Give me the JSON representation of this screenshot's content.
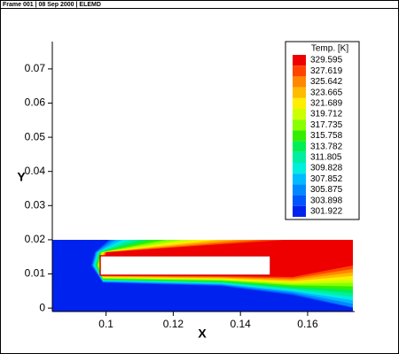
{
  "frame_header": "Frame 001 | 08 Sep 2000 | ELEMD",
  "chart_data": {
    "type": "contour",
    "xlabel": "X",
    "ylabel": "Y",
    "xlim": [
      0.084,
      0.174
    ],
    "ylim": [
      -0.001,
      0.078
    ],
    "xticks": [
      0.1,
      0.12,
      0.14,
      0.16
    ],
    "yticks": [
      0,
      0.01,
      0.02,
      0.03,
      0.04,
      0.05,
      0.06,
      0.07
    ],
    "legend": {
      "title": "Temp. [K]",
      "levels": [
        329.595,
        327.619,
        325.642,
        323.665,
        321.689,
        319.712,
        317.735,
        315.758,
        313.782,
        311.805,
        309.828,
        307.852,
        305.875,
        303.898,
        301.922
      ],
      "colors": [
        "#ee0000",
        "#ff4400",
        "#ff8800",
        "#ffbb00",
        "#ffee00",
        "#ccff00",
        "#88ff00",
        "#33ee00",
        "#00ee55",
        "#00eea0",
        "#00eedd",
        "#00bbff",
        "#0088ff",
        "#0055ff",
        "#0022ee"
      ]
    }
  }
}
